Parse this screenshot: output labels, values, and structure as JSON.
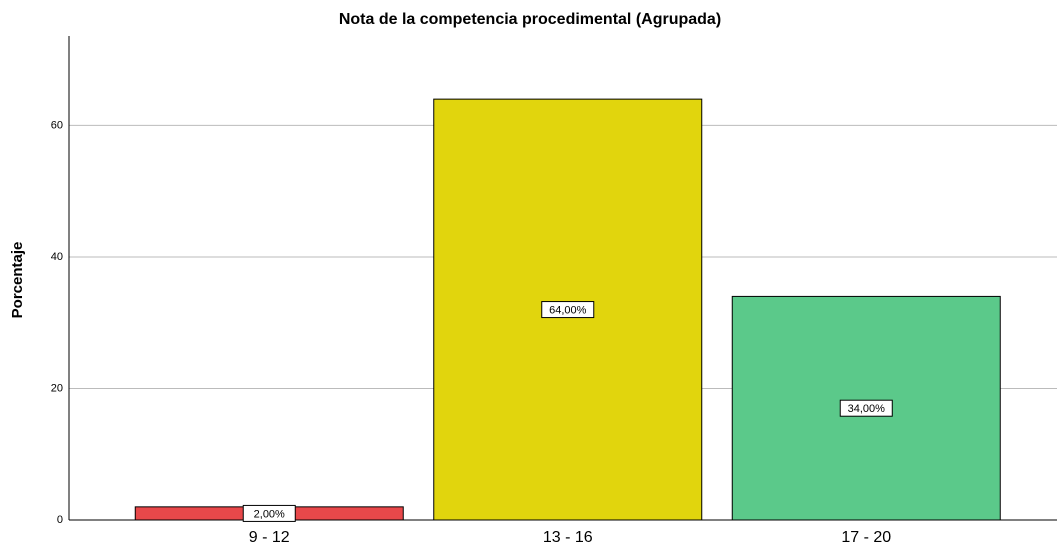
{
  "chart_data": {
    "type": "bar",
    "title": "Nota de la competencia procedimental (Agrupada)",
    "y_label": "Porcentaje",
    "categories": [
      "9 - 12",
      "13 - 16",
      "17 - 20"
    ],
    "values": [
      2,
      64,
      34
    ],
    "value_labels": [
      "2,00%",
      "64,00%",
      "34,00%"
    ],
    "colors": [
      "#e8484a",
      "#e1d50d",
      "#5bc98a"
    ],
    "ylim": [
      0,
      73.6
    ],
    "yticks": [
      0,
      20,
      40,
      60
    ],
    "grid": true
  }
}
